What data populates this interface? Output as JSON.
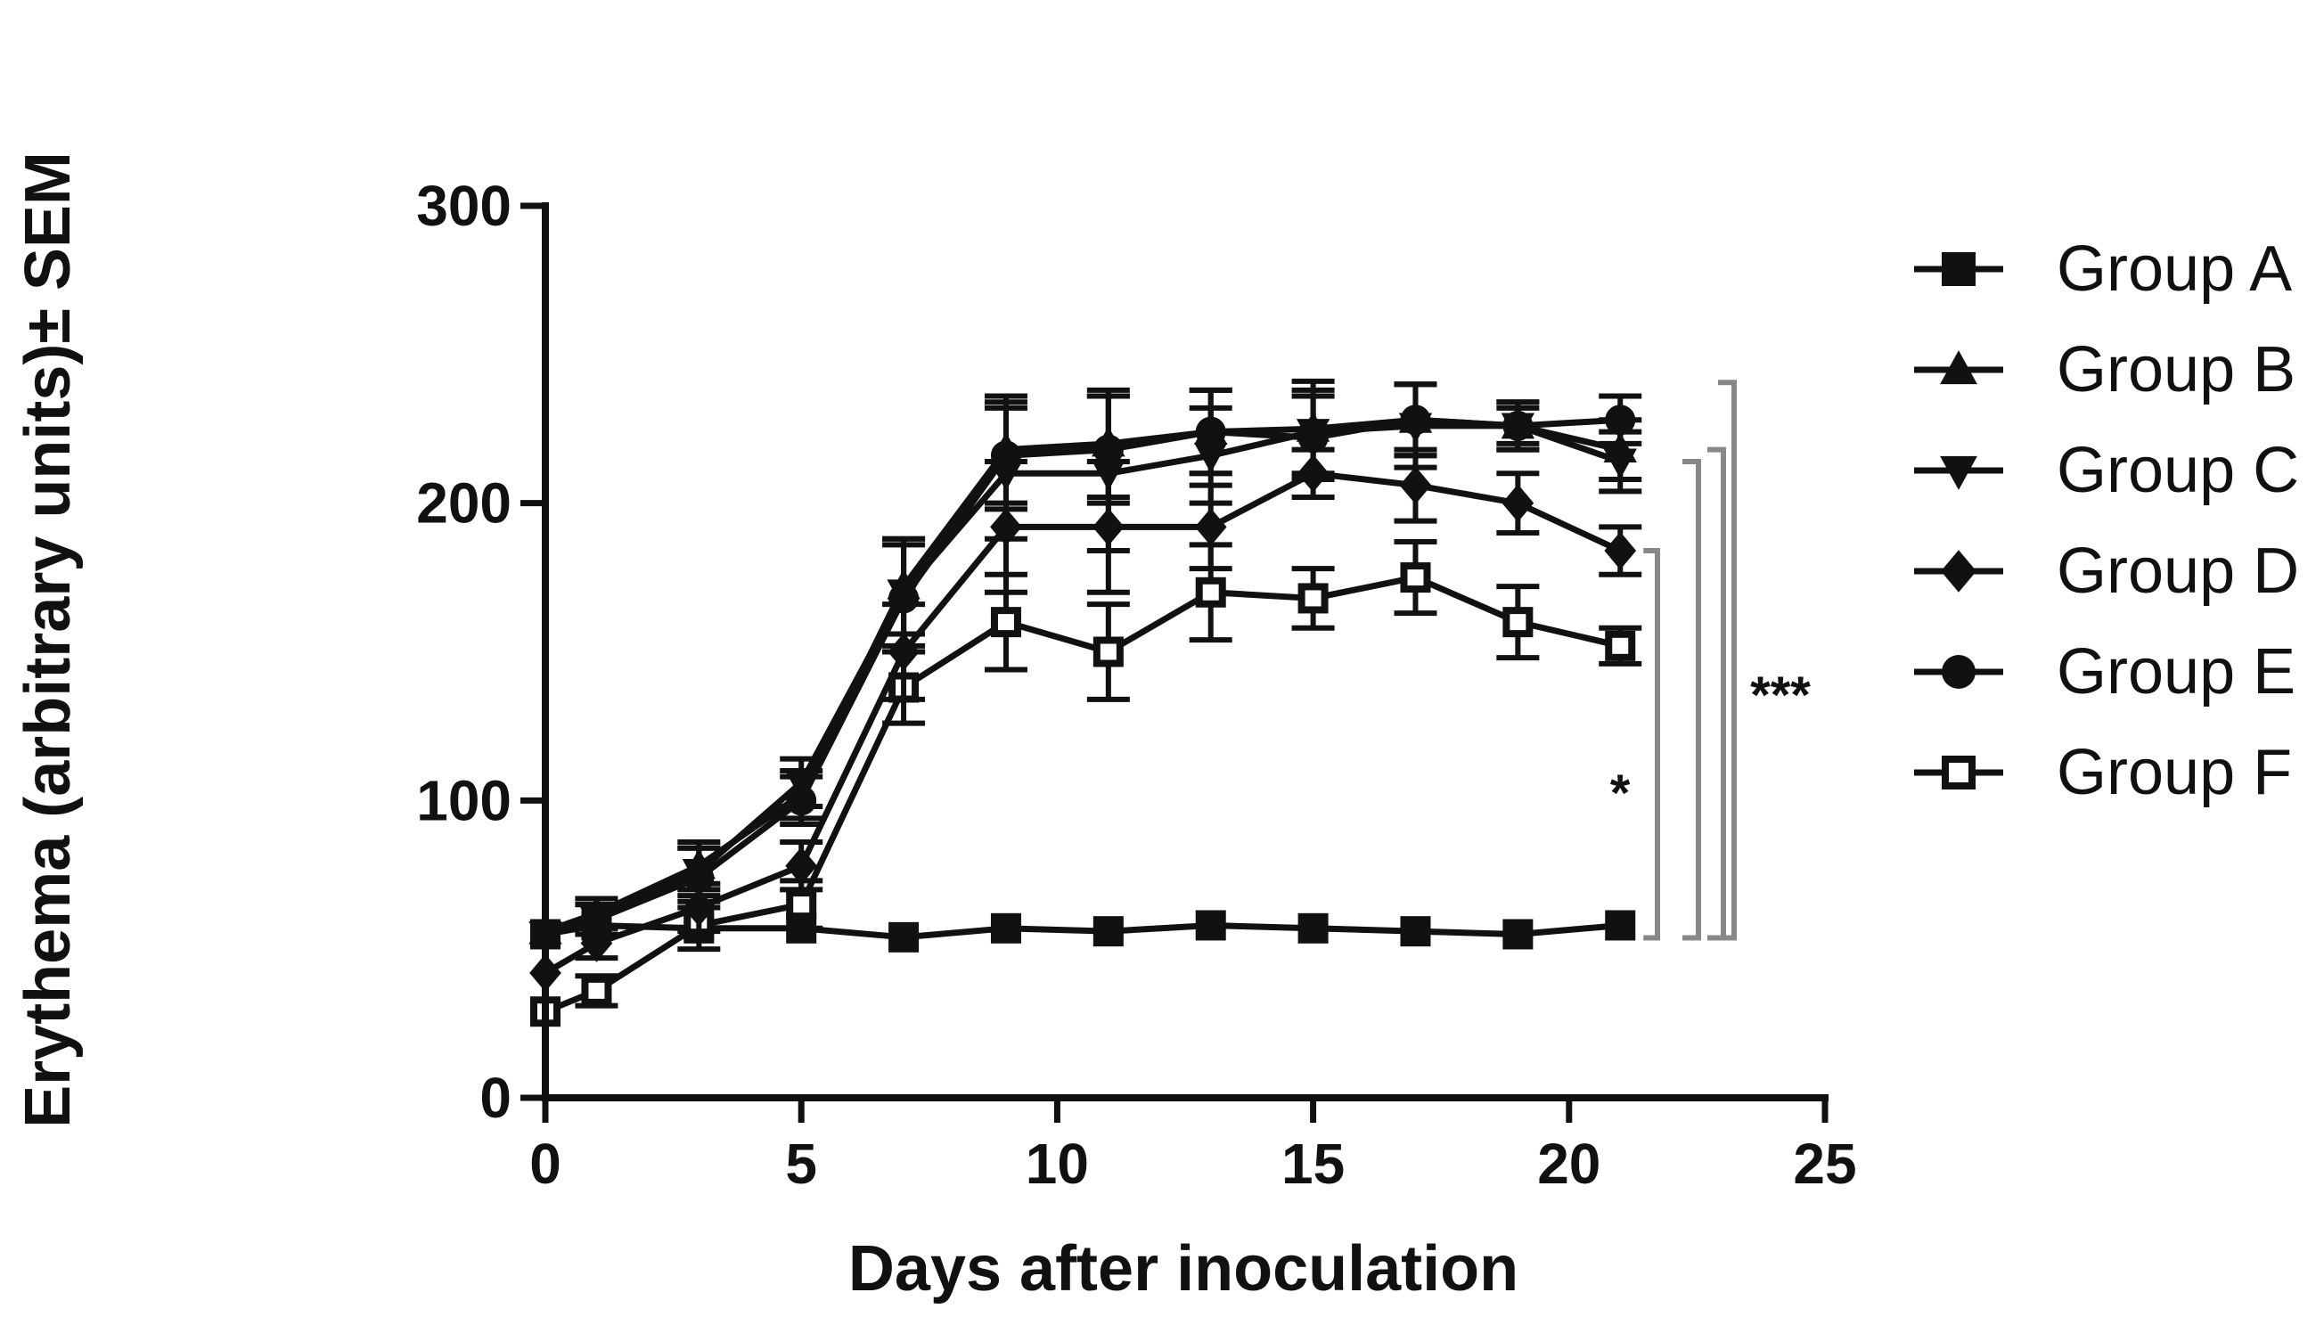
{
  "chart_data": {
    "type": "line",
    "title": "",
    "xlabel": "Days after inoculation",
    "ylabel": "Erythema (arbitrary units)± SEM",
    "xlim": [
      0,
      25
    ],
    "ylim": [
      0,
      300
    ],
    "xticks": [
      0,
      5,
      10,
      15,
      20,
      25
    ],
    "yticks": [
      0,
      100,
      200,
      300
    ],
    "x": [
      0,
      1,
      3,
      5,
      7,
      9,
      11,
      13,
      15,
      17,
      19,
      21
    ],
    "legend_position": "right",
    "series": [
      {
        "name": "Group A",
        "marker": "square",
        "values": [
          55,
          58,
          57,
          57,
          54,
          57,
          56,
          58,
          57,
          56,
          55,
          58
        ],
        "errors": [
          0,
          0,
          0,
          0,
          0,
          0,
          0,
          0,
          0,
          0,
          0,
          0
        ]
      },
      {
        "name": "Group B",
        "marker": "triangle-up",
        "values": [
          56,
          62,
          78,
          102,
          172,
          218,
          220,
          224,
          225,
          228,
          226,
          218
        ],
        "errors": [
          0,
          5,
          8,
          8,
          16,
          18,
          18,
          14,
          16,
          12,
          8,
          10
        ]
      },
      {
        "name": "Group C",
        "marker": "triangle-down",
        "values": [
          55,
          60,
          76,
          106,
          170,
          210,
          210,
          216,
          224,
          226,
          226,
          214
        ],
        "errors": [
          0,
          5,
          8,
          8,
          18,
          22,
          26,
          16,
          14,
          14,
          6,
          10
        ]
      },
      {
        "name": "Group D",
        "marker": "diamond",
        "values": [
          42,
          52,
          64,
          78,
          150,
          192,
          192,
          192,
          210,
          206,
          200,
          184
        ],
        "errors": [
          0,
          5,
          8,
          8,
          16,
          22,
          22,
          14,
          8,
          12,
          10,
          8
        ]
      },
      {
        "name": "Group E",
        "marker": "circle",
        "values": [
          55,
          60,
          74,
          100,
          168,
          216,
          218,
          224,
          222,
          228,
          226,
          228
        ],
        "errors": [
          0,
          5,
          10,
          8,
          18,
          18,
          18,
          14,
          14,
          12,
          8,
          8
        ]
      },
      {
        "name": "Group F",
        "marker": "open-square",
        "values": [
          29,
          36,
          58,
          65,
          138,
          160,
          150,
          170,
          168,
          175,
          160,
          152
        ],
        "errors": [
          0,
          5,
          8,
          8,
          12,
          16,
          16,
          16,
          10,
          12,
          12,
          6
        ]
      }
    ],
    "significance": [
      {
        "label": "*",
        "from": "Group D",
        "to": "Group A"
      },
      {
        "label": "",
        "from": "Group C",
        "to": "Group A"
      },
      {
        "label": "",
        "from": "Group B",
        "to": "Group A"
      },
      {
        "label": "***",
        "from": "Group E",
        "to": "Group A"
      }
    ]
  }
}
